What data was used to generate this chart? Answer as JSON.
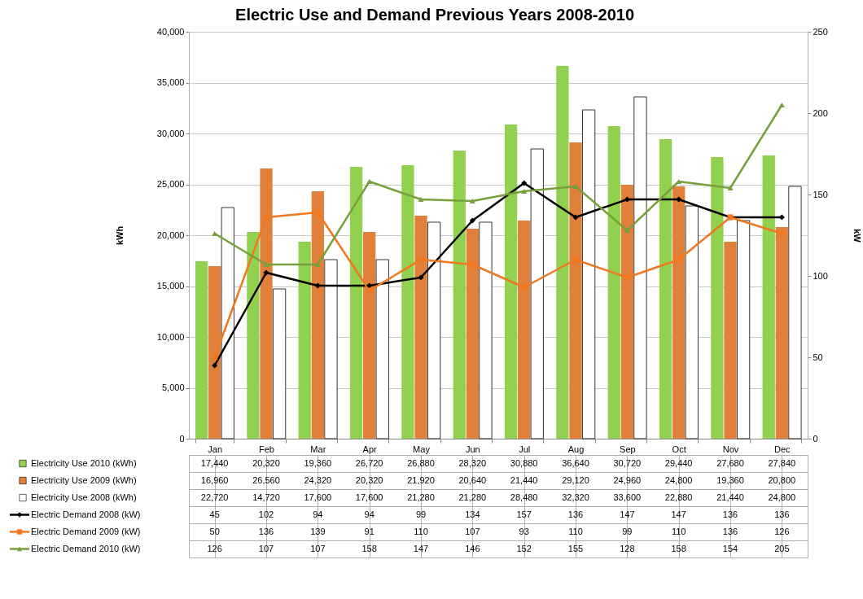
{
  "chart_data": {
    "type": "bar",
    "title": "Electric Use and Demand Previous Years 2008-2010",
    "categories": [
      "Jan",
      "Feb",
      "Mar",
      "Apr",
      "May",
      "Jun",
      "Jul",
      "Aug",
      "Sep",
      "Oct",
      "Nov",
      "Dec"
    ],
    "series": [
      {
        "name": "Electricity Use 2010 (kWh)",
        "color": "#92d050",
        "values": [
          17440,
          20320,
          19360,
          26720,
          26880,
          28320,
          30880,
          36640,
          30720,
          29440,
          27680,
          27840
        ],
        "value_labels": [
          "17,440",
          "20,320",
          "19,360",
          "26,720",
          "26,880",
          "28,320",
          "30,880",
          "36,640",
          "30,720",
          "29,440",
          "27,680",
          "27,840"
        ]
      },
      {
        "name": "Electricity Use 2009 (kWh)",
        "color": "#e0803a",
        "values": [
          16960,
          26560,
          24320,
          20320,
          21920,
          20640,
          21440,
          29120,
          24960,
          24800,
          19360,
          20800
        ],
        "value_labels": [
          "16,960",
          "26,560",
          "24,320",
          "20,320",
          "21,920",
          "20,640",
          "21,440",
          "29,120",
          "24,960",
          "24,800",
          "19,360",
          "20,800"
        ]
      },
      {
        "name": "Electricity Use 2008 (kWh)",
        "color": "#ffffff",
        "values": [
          22720,
          14720,
          17600,
          17600,
          21280,
          21280,
          28480,
          32320,
          33600,
          22880,
          21440,
          24800
        ],
        "value_labels": [
          "22,720",
          "14,720",
          "17,600",
          "17,600",
          "21,280",
          "21,280",
          "28,480",
          "32,320",
          "33,600",
          "22,880",
          "21,440",
          "24,800"
        ]
      },
      {
        "name": "Electric Demand 2008 (kW)",
        "type": "line",
        "axis": "y2",
        "marker": "diamond",
        "color": "#000000",
        "values": [
          45,
          102,
          94,
          94,
          99,
          134,
          157,
          136,
          147,
          147,
          136,
          136
        ]
      },
      {
        "name": "Electric Demand 2009 (kW)",
        "type": "line",
        "axis": "y2",
        "marker": "square",
        "color": "#f07820",
        "values": [
          50,
          136,
          139,
          91,
          110,
          107,
          93,
          110,
          99,
          110,
          136,
          126
        ]
      },
      {
        "name": "Electric Demand 2010 (kW)",
        "type": "line",
        "axis": "y2",
        "marker": "triangle",
        "color": "#77a03c",
        "values": [
          126,
          107,
          107,
          158,
          147,
          146,
          152,
          155,
          128,
          158,
          154,
          205
        ]
      }
    ],
    "ylabel": "kWh",
    "y2label": "kW",
    "ylim": [
      0,
      40000
    ],
    "yticks": [
      {
        "value": 0,
        "label": "0"
      },
      {
        "value": 5000,
        "label": "5,000"
      },
      {
        "value": 10000,
        "label": "10,000"
      },
      {
        "value": 15000,
        "label": "15,000"
      },
      {
        "value": 20000,
        "label": "20,000"
      },
      {
        "value": 25000,
        "label": "25,000"
      },
      {
        "value": 30000,
        "label": "30,000"
      },
      {
        "value": 35000,
        "label": "35,000"
      },
      {
        "value": 40000,
        "label": "40,000"
      }
    ],
    "y2lim": [
      0,
      250
    ],
    "y2ticks": [
      0,
      50,
      100,
      150,
      200,
      250
    ],
    "grid": "y",
    "legend": "bottom",
    "data_labels": true
  }
}
